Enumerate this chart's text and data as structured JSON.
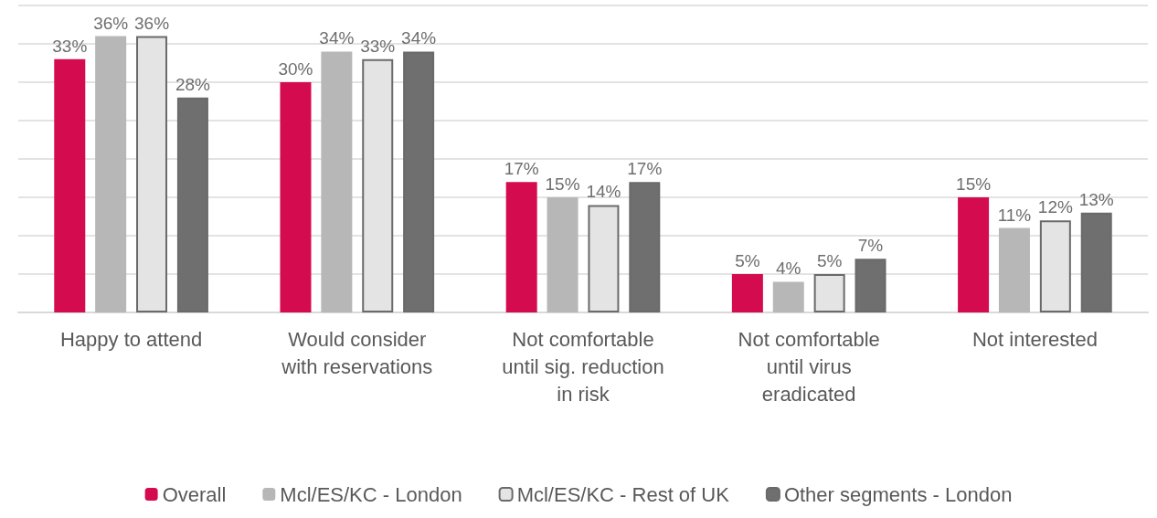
{
  "chart_data": {
    "type": "bar",
    "categories": [
      "Happy to attend",
      "Would consider\nwith reservations",
      "Not comfortable\nuntil sig. reduction\nin risk",
      "Not comfortable\nuntil virus\neradicated",
      "Not interested"
    ],
    "series": [
      {
        "name": "Overall",
        "color": "#d50b4f",
        "values": [
          33,
          30,
          17,
          5,
          15
        ],
        "value_labels": [
          "33%",
          "30%",
          "17%",
          "5%",
          "15%"
        ]
      },
      {
        "name": "Mcl/ES/KC - London",
        "color": "#b7b7b7",
        "values": [
          36,
          34,
          15,
          4,
          11
        ],
        "value_labels": [
          "36%",
          "34%",
          "15%",
          "4%",
          "11%"
        ]
      },
      {
        "name": "Mcl/ES/KC - Rest of UK",
        "color": "#e4e4e4",
        "values": [
          36,
          33,
          14,
          5,
          12
        ],
        "value_labels": [
          "36%",
          "33%",
          "14%",
          "5%",
          "12%"
        ]
      },
      {
        "name": "Other segments - London",
        "color": "#6f6f6f",
        "values": [
          28,
          34,
          17,
          7,
          13
        ],
        "value_labels": [
          "28%",
          "34%",
          "17%",
          "7%",
          "13%"
        ]
      }
    ],
    "ylim": [
      0,
      40
    ],
    "yticks": [
      {
        "value": 0,
        "label": null
      },
      {
        "value": 5,
        "label": null
      },
      {
        "value": 10,
        "label": null
      },
      {
        "value": 15,
        "label": null
      },
      {
        "value": 20,
        "label": null
      },
      {
        "value": 25,
        "label": null
      },
      {
        "value": 30,
        "label": null
      },
      {
        "value": 35,
        "label": null
      },
      {
        "value": 40,
        "label": null
      }
    ],
    "tick_labels": "x",
    "grid": "y",
    "legend": "bottom"
  }
}
